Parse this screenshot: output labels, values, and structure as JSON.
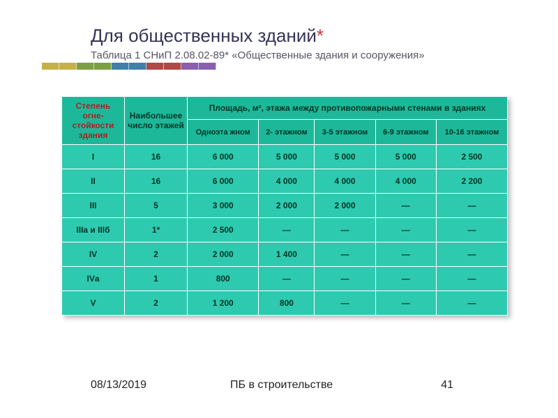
{
  "colors": {
    "accent_bars": [
      "#c6b048",
      "#c6b048",
      "#7aa042",
      "#7aa042",
      "#3f7fa8",
      "#3f7fa8",
      "#b04848",
      "#b04848",
      "#8a5fae",
      "#8a5fae"
    ],
    "header_bg": "#1db89a",
    "body_bg": "#2ecab0",
    "title_color": "#333355",
    "asterisk_color": "#cc3333"
  },
  "title": {
    "main": "Для общественных зданий",
    "asterisk": "*",
    "sub": "Таблица 1 СНиП 2.08.02-89* «Общественные здания и сооружения»"
  },
  "table": {
    "col_fire": "Степень огне-стойкости здания",
    "col_floors": "Наибольшее число этажей",
    "col_area_span": "Площадь, м², этажа между противопожарными стенами в зданиях",
    "subcols": [
      "Одноэта\nжном",
      "2-\nэтажном",
      "3-5\nэтажном",
      "6-9\nэтажном",
      "10-16\nэтажном"
    ],
    "rows": [
      {
        "c0": "I",
        "c1": "16",
        "v": [
          "6 000",
          "5 000",
          "5 000",
          "5 000",
          "2 500"
        ]
      },
      {
        "c0": "II",
        "c1": "16",
        "v": [
          "6 000",
          "4 000",
          "4 000",
          "4 000",
          "2 200"
        ]
      },
      {
        "c0": "III",
        "c1": "5",
        "v": [
          "3 000",
          "2 000",
          "2 000",
          "—",
          "—"
        ]
      },
      {
        "c0": "IIIа и IIIб",
        "c1": "1*",
        "v": [
          "2 500",
          "—",
          "—",
          "—",
          "—"
        ]
      },
      {
        "c0": "IV",
        "c1": "2",
        "v": [
          "2 000",
          "1 400",
          "—",
          "—",
          "—"
        ]
      },
      {
        "c0": "IVа",
        "c1": "1",
        "v": [
          "800",
          "—",
          "—",
          "—",
          "—"
        ]
      },
      {
        "c0": "V",
        "c1": "2",
        "v": [
          "1 200",
          "800",
          "—",
          "—",
          "—"
        ]
      }
    ]
  },
  "footer": {
    "date": "08/13/2019",
    "title": "ПБ в строительстве",
    "page": "41"
  }
}
